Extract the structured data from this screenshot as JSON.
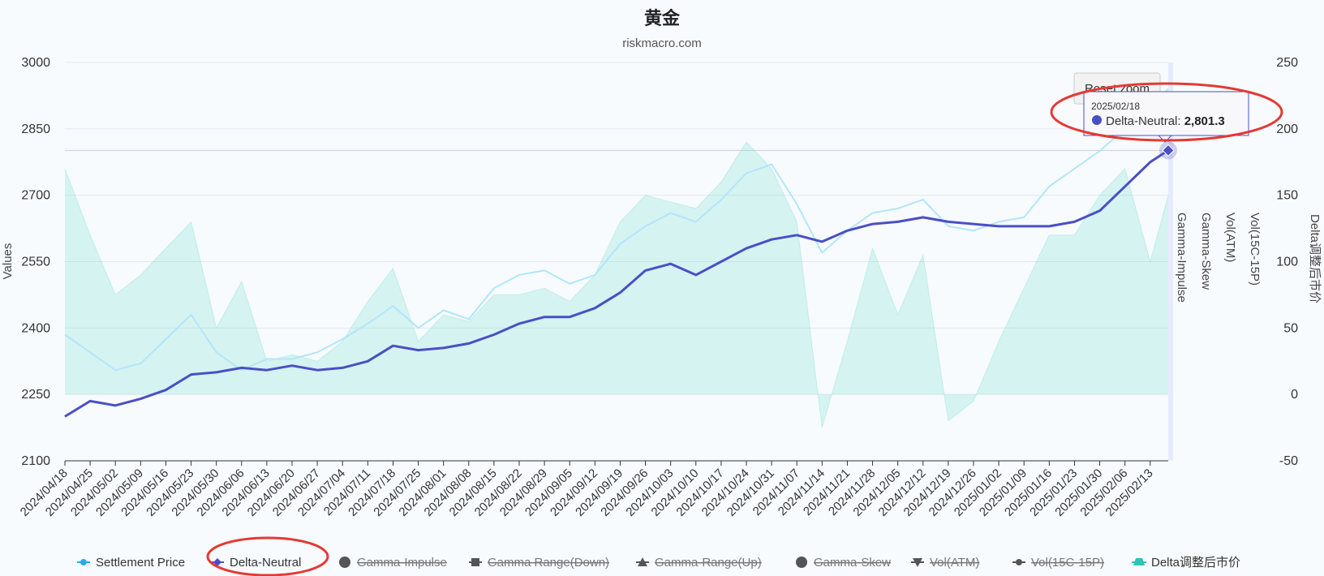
{
  "chart_data": {
    "type": "line",
    "title": "黄金",
    "subtitle": "riskmacro.com",
    "ylabel": "Values",
    "ylim": [
      2100,
      3000
    ],
    "yticks": [
      2100,
      2250,
      2400,
      2550,
      2700,
      2850,
      3000
    ],
    "secondary_ylim": [
      -50,
      250
    ],
    "secondary_yticks": [
      -50,
      0,
      50,
      100,
      150,
      200,
      250
    ],
    "x_start": "2024/04/18",
    "x_end": "2025/02/18",
    "xticks": [
      "2024/04/18",
      "2024/04/25",
      "2024/05/02",
      "2024/05/09",
      "2024/05/16",
      "2024/05/23",
      "2024/05/30",
      "2024/06/06",
      "2024/06/13",
      "2024/06/20",
      "2024/06/27",
      "2024/07/04",
      "2024/07/11",
      "2024/07/18",
      "2024/07/25",
      "2024/08/01",
      "2024/08/08",
      "2024/08/15",
      "2024/08/22",
      "2024/08/29",
      "2024/09/05",
      "2024/09/12",
      "2024/09/19",
      "2024/09/26",
      "2024/10/03",
      "2024/10/10",
      "2024/10/17",
      "2024/10/24",
      "2024/10/31",
      "2024/11/07",
      "2024/11/14",
      "2024/11/21",
      "2024/11/28",
      "2024/12/05",
      "2024/12/12",
      "2024/12/19",
      "2024/12/26",
      "2025/01/02",
      "2025/01/09",
      "2025/01/16",
      "2025/01/23",
      "2025/01/30",
      "2025/02/06",
      "2025/02/13"
    ],
    "right_axis_titles": [
      "Gamma-Impulse",
      "Gamma-Skew",
      "Vol(ATM)",
      "Vol(15C-15P)",
      "Delta调整后市价"
    ],
    "series": [
      {
        "name": "Settlement Price",
        "axis": "left",
        "color": "#b3e5fc",
        "visible": true,
        "x": [
          "2024/04/18",
          "2024/04/25",
          "2024/05/02",
          "2024/05/09",
          "2024/05/16",
          "2024/05/23",
          "2024/05/30",
          "2024/06/06",
          "2024/06/13",
          "2024/06/20",
          "2024/06/27",
          "2024/07/04",
          "2024/07/11",
          "2024/07/18",
          "2024/07/25",
          "2024/08/01",
          "2024/08/08",
          "2024/08/15",
          "2024/08/22",
          "2024/08/29",
          "2024/09/05",
          "2024/09/12",
          "2024/09/19",
          "2024/09/26",
          "2024/10/03",
          "2024/10/10",
          "2024/10/17",
          "2024/10/24",
          "2024/10/31",
          "2024/11/07",
          "2024/11/14",
          "2024/11/21",
          "2024/11/28",
          "2024/12/05",
          "2024/12/12",
          "2024/12/19",
          "2024/12/26",
          "2025/01/02",
          "2025/01/09",
          "2025/01/16",
          "2025/01/23",
          "2025/01/30",
          "2025/02/06",
          "2025/02/13",
          "2025/02/18"
        ],
        "values": [
          2385,
          2345,
          2305,
          2320,
          2375,
          2430,
          2345,
          2305,
          2330,
          2330,
          2345,
          2375,
          2410,
          2450,
          2400,
          2440,
          2420,
          2490,
          2520,
          2530,
          2500,
          2520,
          2590,
          2630,
          2660,
          2640,
          2690,
          2750,
          2770,
          2680,
          2570,
          2620,
          2660,
          2670,
          2690,
          2630,
          2620,
          2640,
          2650,
          2720,
          2760,
          2800,
          2850,
          2900,
          2940
        ]
      },
      {
        "name": "Delta-Neutral",
        "axis": "left",
        "color": "#4a4fc4",
        "visible": true,
        "x": [
          "2024/04/18",
          "2024/04/25",
          "2024/05/02",
          "2024/05/09",
          "2024/05/16",
          "2024/05/23",
          "2024/05/30",
          "2024/06/06",
          "2024/06/13",
          "2024/06/20",
          "2024/06/27",
          "2024/07/04",
          "2024/07/11",
          "2024/07/18",
          "2024/07/25",
          "2024/08/01",
          "2024/08/08",
          "2024/08/15",
          "2024/08/22",
          "2024/08/29",
          "2024/09/05",
          "2024/09/12",
          "2024/09/19",
          "2024/09/26",
          "2024/10/03",
          "2024/10/10",
          "2024/10/17",
          "2024/10/24",
          "2024/10/31",
          "2024/11/07",
          "2024/11/14",
          "2024/11/21",
          "2024/11/28",
          "2024/12/05",
          "2024/12/12",
          "2024/12/19",
          "2024/12/26",
          "2025/01/02",
          "2025/01/09",
          "2025/01/16",
          "2025/01/23",
          "2025/01/30",
          "2025/02/06",
          "2025/02/13",
          "2025/02/18"
        ],
        "values": [
          2200,
          2235,
          2225,
          2240,
          2260,
          2295,
          2300,
          2310,
          2305,
          2315,
          2305,
          2310,
          2325,
          2360,
          2350,
          2355,
          2365,
          2385,
          2410,
          2425,
          2425,
          2445,
          2480,
          2530,
          2545,
          2520,
          2550,
          2580,
          2600,
          2610,
          2595,
          2620,
          2635,
          2640,
          2650,
          2640,
          2635,
          2630,
          2630,
          2630,
          2640,
          2665,
          2720,
          2775,
          2801.3
        ]
      },
      {
        "name": "Gamma-Impulse",
        "axis": "right",
        "visible": false,
        "values": []
      },
      {
        "name": "Gamma Range(Down)",
        "axis": "right",
        "visible": false,
        "values": []
      },
      {
        "name": "Gamma-Range(Up)",
        "axis": "right",
        "visible": false,
        "values": []
      },
      {
        "name": "Gamma-Skew",
        "axis": "right",
        "visible": false,
        "values": []
      },
      {
        "name": "Vol(ATM)",
        "axis": "right",
        "visible": false,
        "values": []
      },
      {
        "name": "Vol(15C-15P)",
        "axis": "right",
        "visible": false,
        "values": []
      },
      {
        "name": "Delta调整后市价",
        "axis": "right",
        "color": "#7fe0d0",
        "type": "area",
        "visible": true,
        "x": [
          "2024/04/18",
          "2024/04/25",
          "2024/05/02",
          "2024/05/09",
          "2024/05/16",
          "2024/05/23",
          "2024/05/30",
          "2024/06/06",
          "2024/06/13",
          "2024/06/20",
          "2024/06/27",
          "2024/07/04",
          "2024/07/11",
          "2024/07/18",
          "2024/07/25",
          "2024/08/01",
          "2024/08/08",
          "2024/08/15",
          "2024/08/22",
          "2024/08/29",
          "2024/09/05",
          "2024/09/12",
          "2024/09/19",
          "2024/09/26",
          "2024/10/03",
          "2024/10/10",
          "2024/10/17",
          "2024/10/24",
          "2024/10/31",
          "2024/11/07",
          "2024/11/14",
          "2024/11/21",
          "2024/11/28",
          "2024/12/05",
          "2024/12/12",
          "2024/12/19",
          "2024/12/26",
          "2025/01/02",
          "2025/01/09",
          "2025/01/16",
          "2025/01/23",
          "2025/01/30",
          "2025/02/06",
          "2025/02/13",
          "2025/02/18"
        ],
        "values": [
          170,
          120,
          75,
          90,
          110,
          130,
          50,
          85,
          25,
          30,
          25,
          40,
          70,
          95,
          40,
          60,
          55,
          75,
          75,
          80,
          70,
          90,
          130,
          150,
          145,
          140,
          160,
          190,
          170,
          130,
          -25,
          40,
          110,
          60,
          105,
          -20,
          -5,
          40,
          80,
          120,
          120,
          150,
          170,
          100,
          150
        ]
      }
    ],
    "legend": [
      {
        "label": "Settlement Price",
        "symbol": "circle",
        "color": "#29a9ea",
        "active": true
      },
      {
        "label": "Delta-Neutral",
        "symbol": "diamond",
        "color": "#4a4fc4",
        "active": true
      },
      {
        "label": "Gamma-Impulse",
        "symbol": "circle-lg",
        "color": "#555555",
        "active": false
      },
      {
        "label": "Gamma Range(Down)",
        "symbol": "square",
        "color": "#555555",
        "active": false
      },
      {
        "label": "Gamma-Range(Up)",
        "symbol": "triangle",
        "color": "#555555",
        "active": false
      },
      {
        "label": "Gamma-Skew",
        "symbol": "circle-lg",
        "color": "#555555",
        "active": false
      },
      {
        "label": "Vol(ATM)",
        "symbol": "triangle-down",
        "color": "#555555",
        "active": false
      },
      {
        "label": "Vol(15C-15P)",
        "symbol": "circle",
        "color": "#555555",
        "active": false
      },
      {
        "label": "Delta调整后市价",
        "symbol": "area",
        "color": "#2ec4b6",
        "active": true
      }
    ],
    "legend_position": "bottom",
    "grid": true,
    "tooltip": {
      "date": "2025/02/18",
      "series": "Delta-Neutral",
      "value": "2,801.3"
    },
    "reset_zoom_label": "Reset zoom"
  }
}
